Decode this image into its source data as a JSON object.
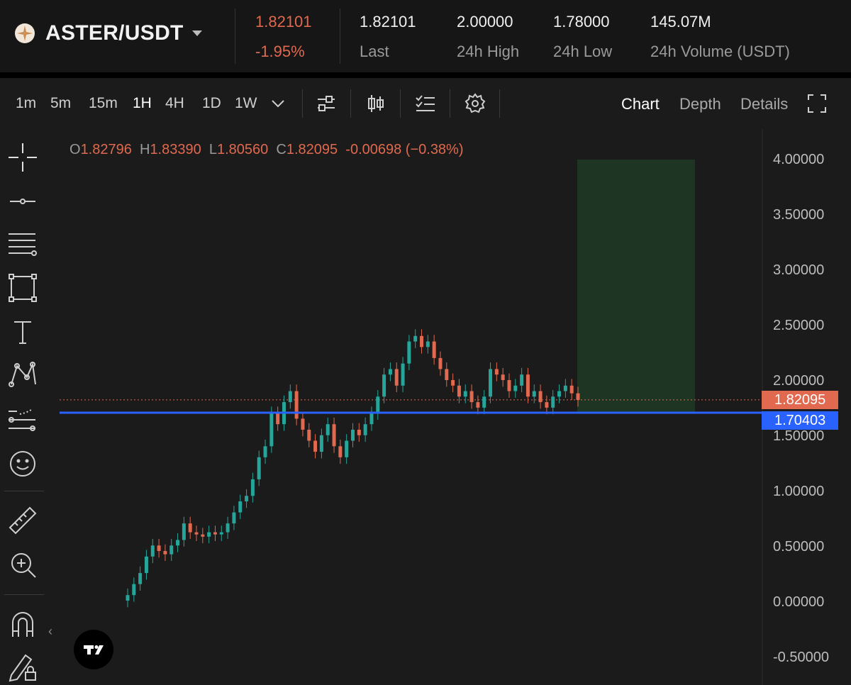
{
  "header": {
    "pair": "ASTER/USDT",
    "price": "1.82101",
    "change": "-1.95%",
    "last": {
      "value": "1.82101",
      "label": "Last"
    },
    "high": {
      "value": "2.00000",
      "label": "24h High"
    },
    "low": {
      "value": "1.78000",
      "label": "24h Low"
    },
    "volume": {
      "value": "145.07M",
      "label": "24h Volume (USDT)"
    }
  },
  "toolbar": {
    "timeframes": [
      "1m",
      "5m",
      "15m",
      "1H",
      "4H",
      "1D",
      "1W"
    ],
    "active_timeframe": "1H",
    "views": [
      "Chart",
      "Depth",
      "Details"
    ],
    "active_view": "Chart"
  },
  "ohlc": {
    "o_label": "O",
    "o": "1.82796",
    "h_label": "H",
    "h": "1.83390",
    "l_label": "L",
    "l": "1.80560",
    "c_label": "C",
    "c": "1.82095",
    "change": "-0.00698 (−0.38%)"
  },
  "axis": {
    "labels": [
      "4.00000",
      "3.50000",
      "3.00000",
      "2.50000",
      "2.00000",
      "1.50000",
      "1.00000",
      "0.50000",
      "0.00000",
      "-0.50000"
    ]
  },
  "price_tags": {
    "current": "1.82095",
    "line": "1.70403"
  },
  "colors": {
    "up": "#26a69a",
    "down": "#e0694f",
    "hline": "#2962ff",
    "zone": "#1f3a24",
    "background": "#1b1b1b"
  },
  "sidebar_icons": [
    "crosshair-icon",
    "trend-line-icon",
    "horizontal-lines-icon",
    "rectangle-icon",
    "text-icon",
    "pattern-icon",
    "prediction-icon",
    "emoji-icon",
    "ruler-icon",
    "zoom-in-icon",
    "magnet-icon",
    "lock-drawing-icon"
  ],
  "chart_data": {
    "type": "candlestick",
    "ylim": [
      -0.5,
      4.0
    ],
    "horizontal_line": 1.70403,
    "current_price": 1.82095,
    "target_zone": {
      "y_from": 1.70403,
      "y_to": 4.0
    },
    "candles_close": [
      0.05,
      0.15,
      0.25,
      0.4,
      0.5,
      0.45,
      0.42,
      0.5,
      0.55,
      0.7,
      0.62,
      0.6,
      0.58,
      0.62,
      0.6,
      0.62,
      0.7,
      0.8,
      0.9,
      0.95,
      1.1,
      1.3,
      1.4,
      1.7,
      1.6,
      1.8,
      1.9,
      1.65,
      1.55,
      1.45,
      1.35,
      1.5,
      1.6,
      1.4,
      1.3,
      1.45,
      1.55,
      1.5,
      1.6,
      1.7,
      1.85,
      2.05,
      2.1,
      1.95,
      2.15,
      2.35,
      2.4,
      2.3,
      2.35,
      2.2,
      2.1,
      2.0,
      1.95,
      1.85,
      1.9,
      1.8,
      1.75,
      1.85,
      2.1,
      2.05,
      2.0,
      1.9,
      1.95,
      2.05,
      1.85,
      1.9,
      1.8,
      1.75,
      1.85,
      1.9,
      1.95,
      1.88,
      1.82
    ]
  }
}
